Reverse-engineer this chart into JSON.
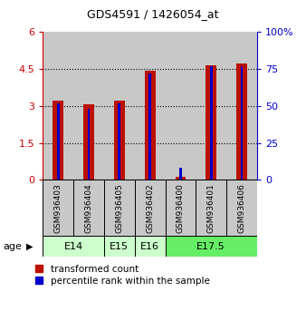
{
  "title": "GDS4591 / 1426054_at",
  "samples": [
    "GSM936403",
    "GSM936404",
    "GSM936405",
    "GSM936402",
    "GSM936400",
    "GSM936401",
    "GSM936406"
  ],
  "transformed_count": [
    3.2,
    3.05,
    3.2,
    4.42,
    0.12,
    4.65,
    4.72
  ],
  "percentile_rank_pct": [
    52,
    48,
    52,
    72,
    8,
    77,
    77
  ],
  "age_groups": [
    {
      "label": "E14",
      "start": 0,
      "end": 1,
      "color": "#ccffcc"
    },
    {
      "label": "E15",
      "start": 2,
      "end": 2,
      "color": "#ccffcc"
    },
    {
      "label": "E16",
      "start": 3,
      "end": 3,
      "color": "#ccffcc"
    },
    {
      "label": "E17.5",
      "start": 4,
      "end": 6,
      "color": "#66ee66"
    }
  ],
  "bar_color_red": "#bb1100",
  "bar_color_blue": "#0000cc",
  "ylim_left": [
    0,
    6
  ],
  "ylim_right": [
    0,
    100
  ],
  "yticks_left": [
    0,
    1.5,
    3.0,
    4.5,
    6
  ],
  "yticks_right": [
    0,
    25,
    50,
    75,
    100
  ],
  "ytick_labels_left": [
    "0",
    "1.5",
    "3",
    "4.5",
    "6"
  ],
  "ytick_labels_right": [
    "0",
    "25",
    "50",
    "75",
    "100%"
  ],
  "sample_bg_color": "#c8c8c8",
  "legend_red_label": "transformed count",
  "legend_blue_label": "percentile rank within the sample",
  "age_label": "age",
  "left_axis_color": "#cc0000",
  "right_axis_color": "#0000cc",
  "fig_width": 3.38,
  "fig_height": 3.54,
  "dpi": 100
}
